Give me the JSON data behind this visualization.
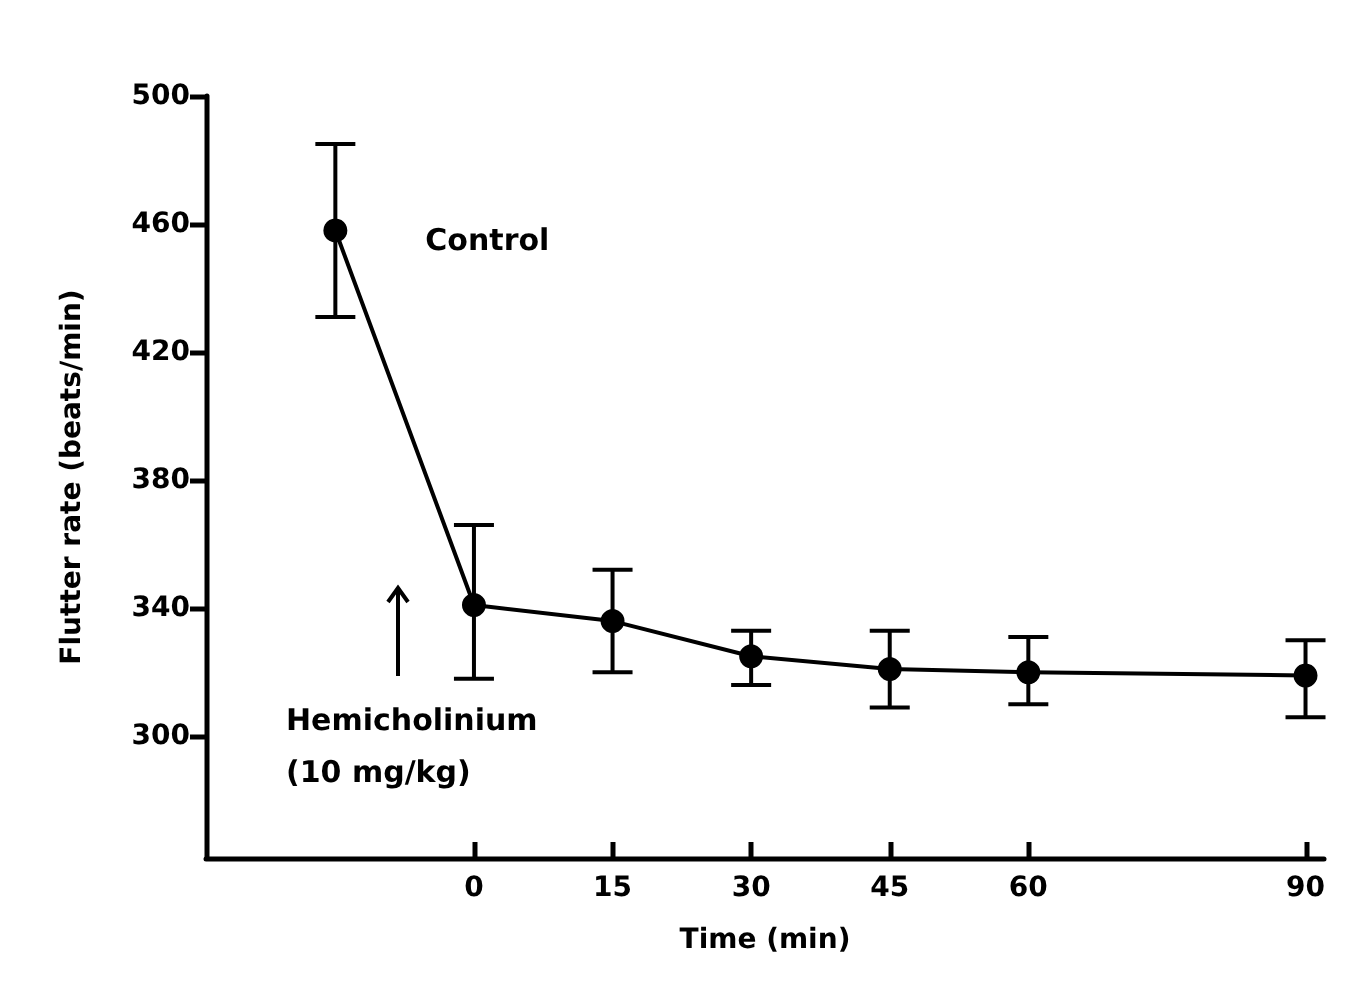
{
  "chart_data": {
    "type": "line",
    "xlabel": "Time (min)",
    "ylabel": "Flutter rate (beats/min)",
    "x": [
      -15,
      0,
      15,
      30,
      45,
      60,
      90
    ],
    "series": [
      {
        "color": "#000000",
        "values": [
          458,
          341,
          336,
          325,
          321,
          320,
          319
        ],
        "errors": [
          [
            431,
            485
          ],
          [
            318,
            366
          ],
          [
            320,
            352
          ],
          [
            316,
            333
          ],
          [
            309,
            333
          ],
          [
            310,
            331
          ],
          [
            306,
            330
          ]
        ]
      }
    ],
    "xlim": [
      -29,
      92
    ],
    "xticks": [
      0,
      15,
      30,
      45,
      60,
      90
    ],
    "ylim": [
      262,
      500
    ],
    "yticks": [
      300,
      340,
      380,
      420,
      460,
      500
    ],
    "annotations": [
      {
        "text": "Control",
        "x": -15,
        "y": 458
      },
      "Hemicholinium\n(10 mg/kg)"
    ],
    "grid": false,
    "marker": "circle",
    "line_style": "solid"
  }
}
